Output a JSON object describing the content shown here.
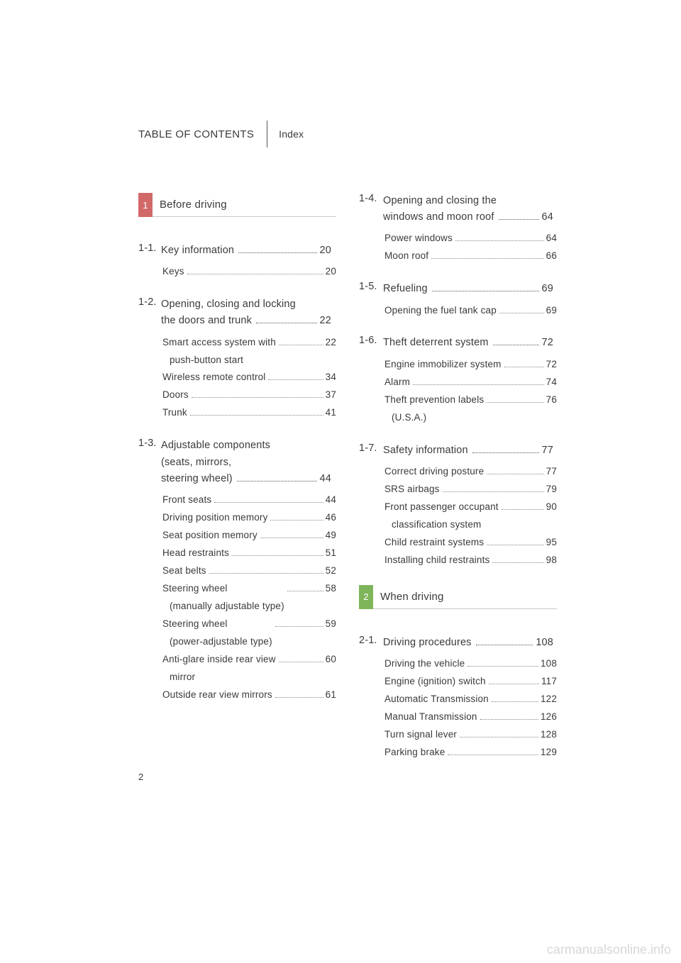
{
  "header": {
    "toc": "TABLE OF CONTENTS",
    "index": "Index"
  },
  "page_number": "2",
  "watermark": "carmanualsonline.info",
  "chapters": [
    {
      "num": "1",
      "color": "red",
      "title": "Before driving",
      "subsections": [
        {
          "num": "1-1.",
          "title_lines": [
            "Key information"
          ],
          "page": "20",
          "items": [
            {
              "lines": [
                "Keys"
              ],
              "page": "20"
            }
          ]
        },
        {
          "num": "1-2.",
          "title_lines": [
            "Opening, closing and locking",
            "the doors and trunk"
          ],
          "page": "22",
          "items": [
            {
              "lines": [
                "Smart access system with",
                "push-button start"
              ],
              "page": "22"
            },
            {
              "lines": [
                "Wireless remote control"
              ],
              "page": "34"
            },
            {
              "lines": [
                "Doors"
              ],
              "page": "37"
            },
            {
              "lines": [
                "Trunk"
              ],
              "page": "41"
            }
          ]
        },
        {
          "num": "1-3.",
          "title_lines": [
            "Adjustable components",
            "(seats, mirrors,",
            "steering wheel)"
          ],
          "page": "44",
          "items": [
            {
              "lines": [
                "Front seats"
              ],
              "page": "44"
            },
            {
              "lines": [
                "Driving position memory"
              ],
              "page": "46"
            },
            {
              "lines": [
                "Seat position memory"
              ],
              "page": "49"
            },
            {
              "lines": [
                "Head restraints"
              ],
              "page": "51"
            },
            {
              "lines": [
                "Seat belts"
              ],
              "page": "52"
            },
            {
              "lines": [
                "Steering wheel",
                "(manually adjustable type)"
              ],
              "page": "58"
            },
            {
              "lines": [
                "Steering wheel",
                "(power-adjustable type)"
              ],
              "page": "59"
            },
            {
              "lines": [
                "Anti-glare inside rear view",
                "mirror"
              ],
              "page": "60"
            },
            {
              "lines": [
                "Outside rear view mirrors"
              ],
              "page": "61"
            }
          ]
        },
        {
          "num": "1-4.",
          "title_lines": [
            "Opening and closing the",
            "windows and moon roof"
          ],
          "page": "64",
          "items": [
            {
              "lines": [
                "Power windows"
              ],
              "page": "64"
            },
            {
              "lines": [
                "Moon roof"
              ],
              "page": "66"
            }
          ]
        },
        {
          "num": "1-5.",
          "title_lines": [
            "Refueling"
          ],
          "page": "69",
          "items": [
            {
              "lines": [
                "Opening the fuel tank cap"
              ],
              "page": "69"
            }
          ]
        },
        {
          "num": "1-6.",
          "title_lines": [
            "Theft deterrent system"
          ],
          "page": "72",
          "items": [
            {
              "lines": [
                "Engine immobilizer system"
              ],
              "page": "72"
            },
            {
              "lines": [
                "Alarm"
              ],
              "page": "74"
            },
            {
              "lines": [
                "Theft prevention labels",
                "(U.S.A.)"
              ],
              "page": "76"
            }
          ]
        },
        {
          "num": "1-7.",
          "title_lines": [
            "Safety information"
          ],
          "page": "77",
          "items": [
            {
              "lines": [
                "Correct driving posture"
              ],
              "page": "77"
            },
            {
              "lines": [
                "SRS airbags"
              ],
              "page": "79"
            },
            {
              "lines": [
                "Front passenger occupant",
                "classification system"
              ],
              "page": "90"
            },
            {
              "lines": [
                "Child restraint systems"
              ],
              "page": "95"
            },
            {
              "lines": [
                "Installing child restraints"
              ],
              "page": "98"
            }
          ]
        }
      ]
    },
    {
      "num": "2",
      "color": "green",
      "title": "When driving",
      "subsections": [
        {
          "num": "2-1.",
          "title_lines": [
            "Driving procedures"
          ],
          "page": "108",
          "items": [
            {
              "lines": [
                "Driving the vehicle"
              ],
              "page": "108"
            },
            {
              "lines": [
                "Engine (ignition) switch"
              ],
              "page": "117"
            },
            {
              "lines": [
                "Automatic Transmission"
              ],
              "page": "122"
            },
            {
              "lines": [
                "Manual Transmission"
              ],
              "page": "126"
            },
            {
              "lines": [
                "Turn signal lever"
              ],
              "page": "128"
            },
            {
              "lines": [
                "Parking brake"
              ],
              "page": "129"
            }
          ]
        }
      ]
    }
  ],
  "column_plan": {
    "left": [
      {
        "chapter": 0,
        "subsections": [
          0,
          1,
          2
        ],
        "heading": true
      }
    ],
    "right": [
      {
        "chapter": 0,
        "subsections": [
          3,
          4,
          5,
          6
        ],
        "heading": false
      },
      {
        "chapter": 1,
        "subsections": [
          0
        ],
        "heading": true
      }
    ]
  }
}
